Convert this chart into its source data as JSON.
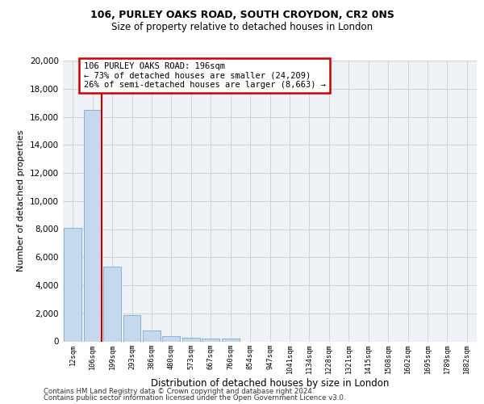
{
  "title_line1": "106, PURLEY OAKS ROAD, SOUTH CROYDON, CR2 0NS",
  "title_line2": "Size of property relative to detached houses in London",
  "xlabel": "Distribution of detached houses by size in London",
  "ylabel": "Number of detached properties",
  "categories": [
    "12sqm",
    "106sqm",
    "199sqm",
    "293sqm",
    "386sqm",
    "480sqm",
    "573sqm",
    "667sqm",
    "760sqm",
    "854sqm",
    "947sqm",
    "1041sqm",
    "1134sqm",
    "1228sqm",
    "1321sqm",
    "1415sqm",
    "1508sqm",
    "1602sqm",
    "1695sqm",
    "1789sqm",
    "1882sqm"
  ],
  "values": [
    8100,
    16500,
    5300,
    1850,
    750,
    350,
    250,
    200,
    175,
    0,
    0,
    0,
    0,
    0,
    0,
    0,
    0,
    0,
    0,
    0,
    0
  ],
  "bar_color": "#c5d8ee",
  "bar_edge_color": "#7aaace",
  "vline_color": "#cc0000",
  "annotation_text": "106 PURLEY OAKS ROAD: 196sqm\n← 73% of detached houses are smaller (24,209)\n26% of semi-detached houses are larger (8,663) →",
  "annotation_box_color": "#cc0000",
  "ylim": [
    0,
    20000
  ],
  "yticks": [
    0,
    2000,
    4000,
    6000,
    8000,
    10000,
    12000,
    14000,
    16000,
    18000,
    20000
  ],
  "grid_color": "#cccccc",
  "bg_color": "#eef2f7",
  "footer_line1": "Contains HM Land Registry data © Crown copyright and database right 2024.",
  "footer_line2": "Contains public sector information licensed under the Open Government Licence v3.0."
}
